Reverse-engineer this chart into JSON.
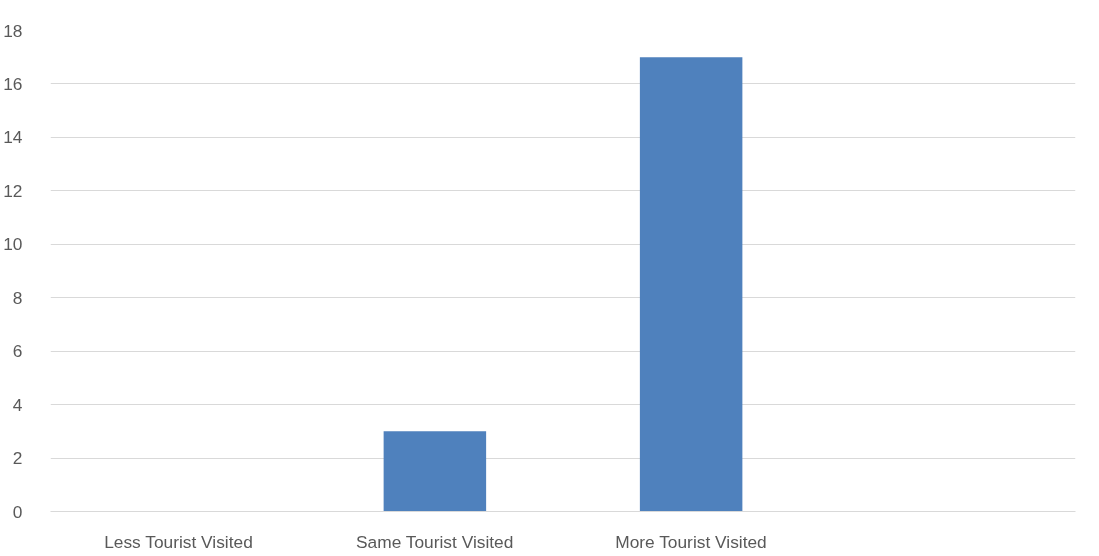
{
  "chart_data": {
    "type": "bar",
    "categories": [
      "Less Tourist Visited",
      "Same Tourist Visited",
      "More Tourist Visited",
      null
    ],
    "values": [
      0,
      3,
      17,
      null
    ],
    "color": "#4f81bd",
    "ylim": [
      0,
      18
    ],
    "yticks": [
      0,
      2,
      4,
      6,
      8,
      10,
      12,
      14,
      16,
      18
    ],
    "grid": "y"
  }
}
